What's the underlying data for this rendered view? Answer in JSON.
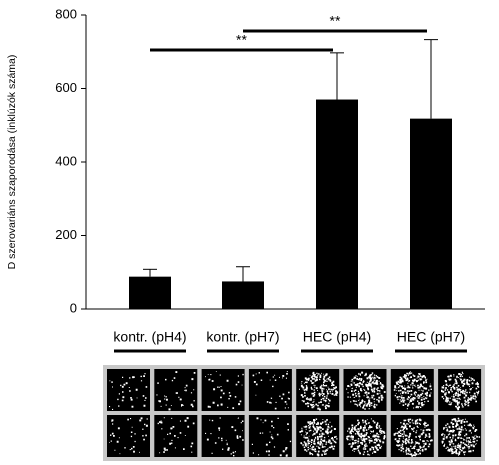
{
  "chart_data": {
    "type": "bar",
    "y_label": "D szerovariáns szaporodása (inklúzók száma)",
    "categories": [
      "kontr. (pH4)",
      "kontr. (pH7)",
      "HEC (pH4)",
      "HEC (pH7)"
    ],
    "values": [
      88,
      75,
      570,
      518
    ],
    "errors": [
      20,
      40,
      127,
      215
    ],
    "color": "#000000",
    "ylim": [
      0,
      800
    ],
    "yticks": [
      0,
      200,
      400,
      600,
      800
    ],
    "annotations": [
      "**",
      "**"
    ]
  }
}
